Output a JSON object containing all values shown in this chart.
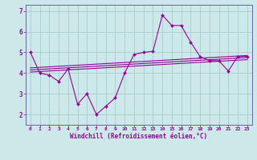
{
  "xlabel": "Windchill (Refroidissement éolien,°C)",
  "bg_color": "#cce8e8",
  "line_color": "#990099",
  "grid_color": "#aacccc",
  "spine_color": "#666699",
  "xlim": [
    -0.5,
    23.5
  ],
  "ylim": [
    1.5,
    7.3
  ],
  "yticks": [
    2,
    3,
    4,
    5,
    6,
    7
  ],
  "xticks": [
    0,
    1,
    2,
    3,
    4,
    5,
    6,
    7,
    8,
    9,
    10,
    11,
    12,
    13,
    14,
    15,
    16,
    17,
    18,
    19,
    20,
    21,
    22,
    23
  ],
  "main_series": [
    5.0,
    4.0,
    3.9,
    3.6,
    4.2,
    2.5,
    3.0,
    2.0,
    2.4,
    2.8,
    4.0,
    4.9,
    5.0,
    5.05,
    6.8,
    6.3,
    6.3,
    5.5,
    4.8,
    4.6,
    4.6,
    4.1,
    4.8,
    4.8
  ],
  "trend_lines": [
    {
      "x0": 0,
      "x1": 23,
      "y0": 4.05,
      "y1": 4.65
    },
    {
      "x0": 0,
      "x1": 23,
      "y0": 4.15,
      "y1": 4.75
    },
    {
      "x0": 0,
      "x1": 23,
      "y0": 4.25,
      "y1": 4.85
    }
  ]
}
